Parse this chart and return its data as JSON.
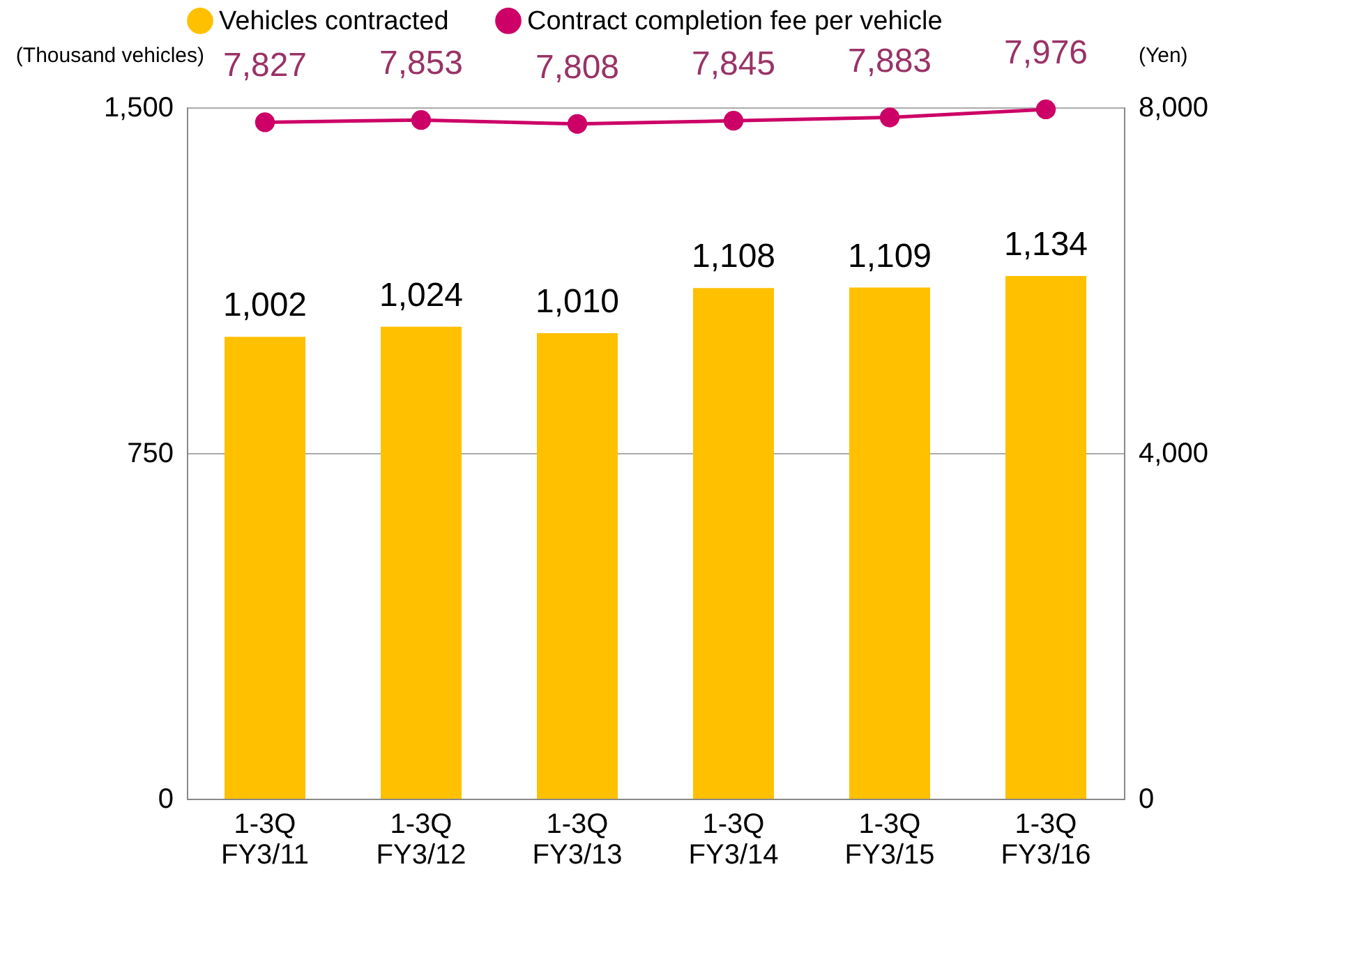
{
  "chart_data": {
    "type": "bar",
    "categories": [
      "1-3Q\nFY3/11",
      "1-3Q\nFY3/12",
      "1-3Q\nFY3/13",
      "1-3Q\nFY3/14",
      "1-3Q\nFY3/15",
      "1-3Q\nFY3/16"
    ],
    "series": [
      {
        "name": "Vehicles contracted",
        "color": "#ffc000",
        "values": [
          1002,
          1024,
          1010,
          1108,
          1109,
          1134
        ],
        "value_labels": [
          "1,002",
          "1,024",
          "1,010",
          "1,108",
          "1,109",
          "1,134"
        ]
      },
      {
        "name": "Contract completion fee per vehicle",
        "type": "line",
        "axis": "y2",
        "color": "#cc0066",
        "values": [
          7827,
          7853,
          7808,
          7845,
          7883,
          7976
        ],
        "value_labels": [
          "7,827",
          "7,853",
          "7,808",
          "7,845",
          "7,883",
          "7,976"
        ]
      }
    ],
    "ylabel": "(Thousand vehicles)",
    "y2label": "(Yen)",
    "ylim": [
      0,
      1500
    ],
    "yticks": [
      0,
      750,
      {
        "value": 1500,
        "label": "1,500"
      }
    ],
    "y2lim": [
      0,
      8000
    ],
    "y2ticks": [
      0,
      {
        "value": 4000,
        "label": "4,000"
      },
      {
        "value": 8000,
        "label": "8,000"
      }
    ],
    "grid": "y",
    "legend": "top",
    "marker": "circle"
  }
}
